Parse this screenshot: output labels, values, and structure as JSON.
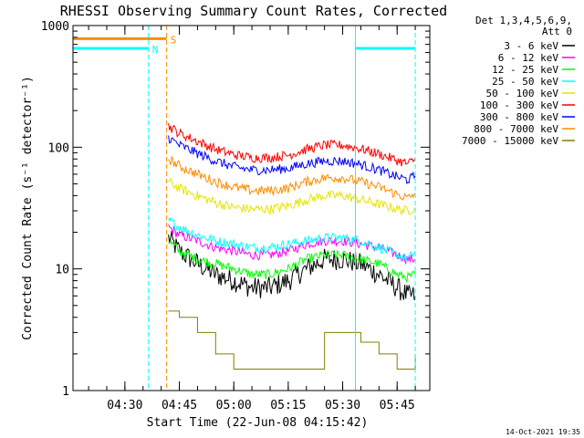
{
  "chart_data": {
    "type": "line",
    "title": "RHESSI Observing Summary Count Rates, Corrected",
    "xlabel": "Start Time (22-Jun-08 04:15:42)",
    "ylabel": "Corrected Count Rate (s⁻¹ detector⁻¹)",
    "yscale": "log",
    "ylim": [
      1,
      1000
    ],
    "y_ticks": [
      1,
      10,
      100,
      1000
    ],
    "y_tick_labels": [
      "1",
      "10",
      "100",
      "1000"
    ],
    "xlim": [
      "04:15:42",
      "05:54:00"
    ],
    "x_ticks": [
      "04:30",
      "04:45",
      "05:00",
      "05:15",
      "05:30",
      "05:45"
    ],
    "grid": false,
    "legend_position": "top-right",
    "legend_header": [
      "Det 1,3,4,5,6,9,",
      "Att 0"
    ],
    "timestamp": "14-Oct-2021 19:35",
    "x_points": [
      "04:42",
      "04:45",
      "04:50",
      "04:55",
      "05:00",
      "05:05",
      "05:10",
      "05:15",
      "05:20",
      "05:25",
      "05:30",
      "05:35",
      "05:40",
      "05:45",
      "05:48",
      "05:50"
    ],
    "series": [
      {
        "name": "3 - 6 keV",
        "color": "#000000",
        "values": [
          18,
          14,
          11,
          9,
          8,
          7,
          7,
          8,
          10,
          12,
          12,
          11,
          9,
          7,
          6,
          6
        ]
      },
      {
        "name": "6 - 12 keV",
        "color": "#ff00ff",
        "values": [
          22,
          19,
          17,
          15,
          14,
          13,
          13,
          14,
          16,
          17,
          17,
          16,
          15,
          13,
          12,
          12
        ]
      },
      {
        "name": "12 - 25 keV",
        "color": "#00ff00",
        "values": [
          17,
          14,
          12,
          11,
          10,
          9,
          9,
          10,
          12,
          13,
          13,
          12,
          11,
          9,
          8.5,
          9
        ]
      },
      {
        "name": "25 - 50 keV",
        "color": "#00ffff",
        "values": [
          25,
          22,
          19,
          17,
          16,
          15,
          15,
          16,
          17,
          18,
          18,
          17,
          15,
          13,
          12,
          14
        ]
      },
      {
        "name": "50 - 100 keV",
        "color": "#e5e500",
        "values": [
          52,
          46,
          40,
          35,
          32,
          31,
          31,
          33,
          37,
          40,
          40,
          37,
          34,
          31,
          30,
          32
        ]
      },
      {
        "name": "100 - 300 keV",
        "color": "#ff0000",
        "values": [
          150,
          130,
          112,
          96,
          87,
          82,
          82,
          86,
          96,
          104,
          104,
          97,
          88,
          78,
          73,
          80
        ]
      },
      {
        "name": "300 - 800 keV",
        "color": "#0000ff",
        "values": [
          120,
          104,
          89,
          77,
          69,
          65,
          65,
          67,
          73,
          77,
          77,
          72,
          65,
          57,
          54,
          58
        ]
      },
      {
        "name": "800 - 7000 keV",
        "color": "#ff8c00",
        "values": [
          80,
          70,
          60,
          52,
          47,
          44,
          44,
          46,
          52,
          56,
          56,
          52,
          47,
          41,
          38,
          42
        ]
      },
      {
        "name": "7000 - 15000 keV",
        "color": "#808000",
        "values": [
          4.5,
          4,
          3,
          2,
          1.5,
          1.5,
          1.5,
          1.5,
          1.5,
          3,
          3,
          2.5,
          2,
          1.5,
          1.5,
          2
        ]
      }
    ],
    "flags": [
      {
        "label": "S",
        "color": "#ff8c00",
        "start": "04:15:42",
        "end": "04:41:30",
        "level": 780
      },
      {
        "label": "N",
        "color": "#00ffff",
        "start": "04:15:42",
        "end": "04:36:30",
        "level": 650
      },
      {
        "label": "",
        "color": "#00ffff",
        "start": "05:33:30",
        "end": "05:50:00",
        "level": 650
      }
    ],
    "markers": [
      {
        "time": "04:15:42",
        "color": "#00ffff",
        "style": "solid"
      },
      {
        "time": "04:36:30",
        "color": "#00ffff",
        "style": "dashed"
      },
      {
        "time": "04:41:30",
        "color": "#ff8c00",
        "style": "dashed"
      },
      {
        "time": "05:33:30",
        "color": "#00ffff",
        "style": "solid"
      },
      {
        "time": "05:50:00",
        "color": "#00ffff",
        "style": "dashed"
      }
    ]
  }
}
